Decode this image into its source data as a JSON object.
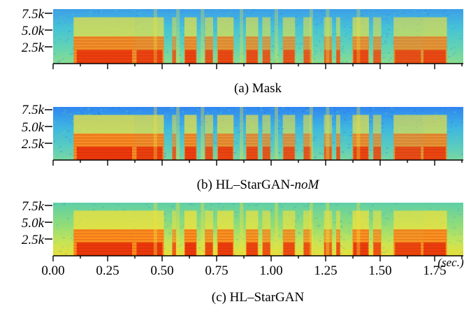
{
  "figure": {
    "panels": [
      {
        "id": "a",
        "caption_prefix": "(a) Mask",
        "caption_italic": "",
        "y_ticks": [
          "7.5k",
          "5.0k",
          "2.5k"
        ],
        "show_x_labels": false,
        "look": "mask"
      },
      {
        "id": "b",
        "caption_prefix": "(b) HL–StarGAN-",
        "caption_italic": "noM",
        "y_ticks": [
          "7.5k",
          "5.0k",
          "2.5k"
        ],
        "show_x_labels": false,
        "look": "nom"
      },
      {
        "id": "c",
        "caption_prefix": "(c) HL–StarGAN",
        "caption_italic": "",
        "y_ticks": [
          "7.5k",
          "5.0k",
          "2.5k"
        ],
        "show_x_labels": true,
        "look": "full"
      }
    ],
    "x_ticks": [
      "0.00",
      "0.25",
      "0.50",
      "0.75",
      "1.00",
      "1.25",
      "1.50",
      "1.75"
    ],
    "x_unit": "(sec.)",
    "colors": {
      "low": "#2c86ff",
      "mid_low": "#3ccbd0",
      "mid": "#7fdc8a",
      "mid_high": "#f3e23a",
      "high": "#ff8a1a",
      "peak": "#e8300a"
    }
  }
}
